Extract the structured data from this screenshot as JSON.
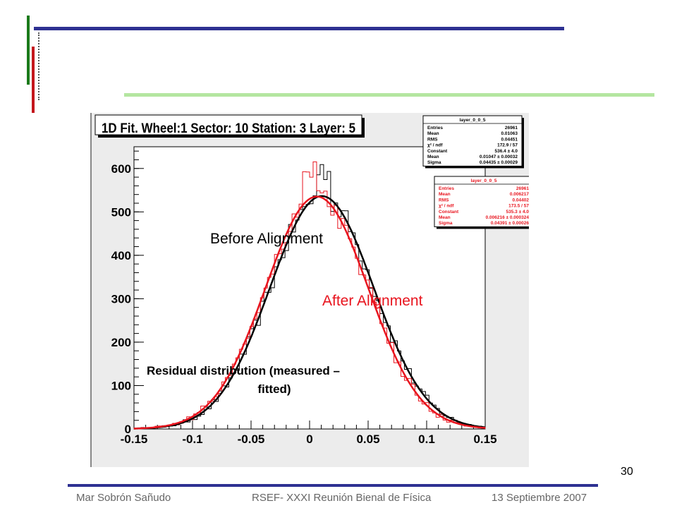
{
  "slide": {
    "page_number": "30",
    "footer": {
      "author": "Mar Sobrón Sañudo",
      "event": "RSEF- XXXI Reunión Bienal de Física",
      "date": "13 Septiembre 2007"
    },
    "accent_colors": {
      "blue": "#2e3192",
      "green": "#1a7a1a",
      "red": "#c4161c",
      "light_green": "#b4e6a0"
    }
  },
  "chart_data": {
    "type": "line",
    "title": "1D Fit. Wheel:1 Sector: 10 Station: 3 Layer: 5",
    "xlabel": "",
    "ylabel": "",
    "xlim": [
      -0.15,
      0.15
    ],
    "ylim": [
      0,
      650
    ],
    "x_ticks": [
      "-0.15",
      "-0.1",
      "-0.05",
      "0",
      "0.05",
      "0.1",
      "0.15"
    ],
    "y_ticks": [
      "0",
      "100",
      "200",
      "300",
      "400",
      "500",
      "600"
    ],
    "grid": false,
    "series": [
      {
        "name": "Before Alignment",
        "color": "#000000",
        "kind": "gaussian-fit",
        "constant": 536.4,
        "mean": 0.01047,
        "sigma": 0.04435
      },
      {
        "name": "After Alignment",
        "color": "#e8141e",
        "kind": "gaussian-fit",
        "constant": 535.3,
        "mean": 0.00622,
        "sigma": 0.04391
      }
    ],
    "annotations": {
      "before": "Before Alignment",
      "after": "After Alignment",
      "residual_line1": "Residual distribution (measured –",
      "residual_line2": "fitted)"
    },
    "stats_before": {
      "title": "layer_0_0_5",
      "rows": [
        [
          "Entries",
          "26961"
        ],
        [
          "Mean",
          "0.01063"
        ],
        [
          "RMS",
          "0.04451"
        ],
        [
          "χ² / ndf",
          "172.9 / 57"
        ],
        [
          "Constant",
          "536.4 ± 4.0"
        ],
        [
          "Mean",
          "0.01047 ± 0.00032"
        ],
        [
          "Sigma",
          "0.04435 ± 0.00029"
        ]
      ]
    },
    "stats_after": {
      "title": "layer_0_0_5",
      "rows": [
        [
          "Entries",
          "26961"
        ],
        [
          "Mean",
          "0.006217"
        ],
        [
          "RMS",
          "0.04402"
        ],
        [
          "χ² / ndf",
          "173.5 / 57"
        ],
        [
          "Constant",
          "535.3 ± 4.0"
        ],
        [
          "Mean",
          "0.006216 ± 0.000324"
        ],
        [
          "Sigma",
          "0.04391 ± 0.00026"
        ]
      ]
    }
  }
}
